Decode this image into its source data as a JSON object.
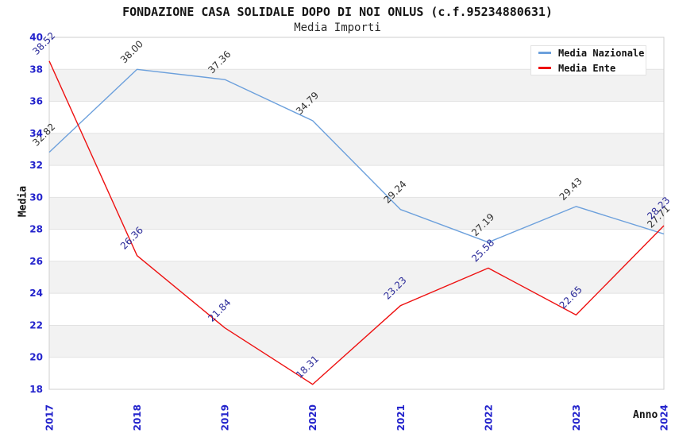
{
  "header": {
    "title": "FONDAZIONE CASA SOLIDALE DOPO DI NOI ONLUS (c.f.95234880631)",
    "subtitle": "Media Importi"
  },
  "legend": {
    "items": [
      {
        "label": "Media Nazionale",
        "color": "#6CA0DC"
      },
      {
        "label": "Media Ente",
        "color": "#EE1111"
      }
    ]
  },
  "chart_data": {
    "type": "line",
    "title": "FONDAZIONE CASA SOLIDALE DOPO DI NOI ONLUS (c.f.95234880631)",
    "subtitle": "Media Importi",
    "xlabel": "Anno",
    "ylabel": "Media",
    "categories": [
      "2017",
      "2018",
      "2019",
      "2020",
      "2021",
      "2022",
      "2023",
      "2024"
    ],
    "series": [
      {
        "name": "Media Nazionale",
        "color": "#6CA0DC",
        "label_color": "#333333",
        "values": [
          32.82,
          38.0,
          37.36,
          34.79,
          29.24,
          27.19,
          29.43,
          27.71
        ]
      },
      {
        "name": "Media Ente",
        "color": "#EE1111",
        "label_color": "#2B2B99",
        "values": [
          38.52,
          26.36,
          21.84,
          18.31,
          23.23,
          25.58,
          22.65,
          28.23
        ]
      }
    ],
    "ylim": [
      18,
      40
    ],
    "ytick_step": 2,
    "yticks": [
      18,
      20,
      22,
      24,
      26,
      28,
      30,
      32,
      34,
      36,
      38,
      40
    ],
    "grid": true,
    "legend_position": "top-right",
    "band_color": "#F2F2F2",
    "grid_color": "#E2E2E2",
    "plot_border_color": "#CFCFCF",
    "tick_label_color": "#2323CC",
    "axis_text_color": "#111111"
  }
}
